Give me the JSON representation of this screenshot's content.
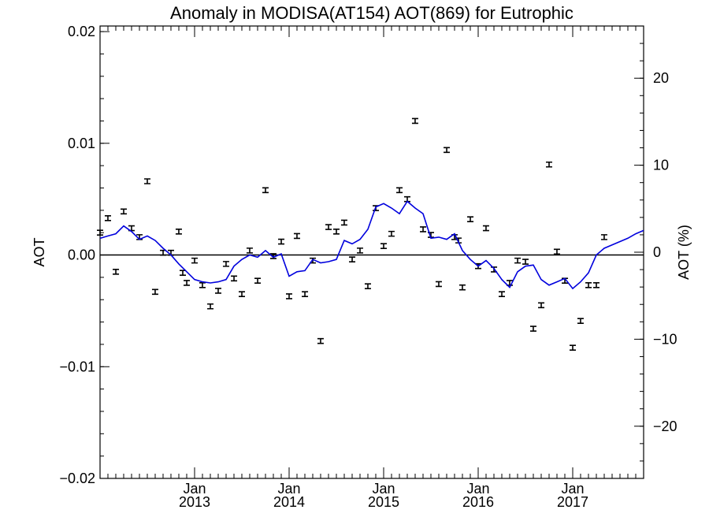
{
  "chart_data": {
    "type": "scatter",
    "title": "Anomaly in MODISA(AT154) AOT(869) for Eutrophic",
    "ylabel": "AOT",
    "ylabel_right": "AOT (%)",
    "ylim": [
      -0.02,
      0.0205
    ],
    "ylim_right": [
      -26,
      26
    ],
    "xlim": [
      2012.0,
      2017.75
    ],
    "y_ticks": [
      {
        "value": -0.02,
        "label": "−0.02"
      },
      {
        "value": -0.01,
        "label": "−0.01"
      },
      {
        "value": 0.0,
        "label": "0.00"
      },
      {
        "value": 0.01,
        "label": "0.01"
      },
      {
        "value": 0.02,
        "label": "0.02"
      }
    ],
    "y_ticks_right": [
      {
        "value": -20,
        "label": "−20"
      },
      {
        "value": -10,
        "label": "−10"
      },
      {
        "value": 0,
        "label": "0"
      },
      {
        "value": 10,
        "label": "10"
      },
      {
        "value": 20,
        "label": "20"
      }
    ],
    "x_ticks": [
      {
        "value": 2013.0,
        "month": "Jan",
        "year": "2013"
      },
      {
        "value": 2014.0,
        "month": "Jan",
        "year": "2014"
      },
      {
        "value": 2015.0,
        "month": "Jan",
        "year": "2015"
      },
      {
        "value": 2016.0,
        "month": "Jan",
        "year": "2016"
      },
      {
        "value": 2017.0,
        "month": "Jan",
        "year": "2017"
      }
    ],
    "points": [
      {
        "x": 2012.0,
        "y": 0.002
      },
      {
        "x": 2012.083,
        "y": 0.0033
      },
      {
        "x": 2012.167,
        "y": -0.0015
      },
      {
        "x": 2012.25,
        "y": 0.0039
      },
      {
        "x": 2012.333,
        "y": 0.0024
      },
      {
        "x": 2012.417,
        "y": 0.0016
      },
      {
        "x": 2012.5,
        "y": 0.0066
      },
      {
        "x": 2012.583,
        "y": -0.0033
      },
      {
        "x": 2012.667,
        "y": 0.0002
      },
      {
        "x": 2012.75,
        "y": 0.0002
      },
      {
        "x": 2012.833,
        "y": 0.0021
      },
      {
        "x": 2012.875,
        "y": -0.0016
      },
      {
        "x": 2012.917,
        "y": -0.0025
      },
      {
        "x": 2013.0,
        "y": -0.0005
      },
      {
        "x": 2013.083,
        "y": -0.0027
      },
      {
        "x": 2013.167,
        "y": -0.0046
      },
      {
        "x": 2013.25,
        "y": -0.0032
      },
      {
        "x": 2013.333,
        "y": -0.0008
      },
      {
        "x": 2013.417,
        "y": -0.0021
      },
      {
        "x": 2013.5,
        "y": -0.0035
      },
      {
        "x": 2013.583,
        "y": 0.0004
      },
      {
        "x": 2013.667,
        "y": -0.0023
      },
      {
        "x": 2013.75,
        "y": 0.0058
      },
      {
        "x": 2013.833,
        "y": -0.0001
      },
      {
        "x": 2013.917,
        "y": 0.0012
      },
      {
        "x": 2014.0,
        "y": -0.0037
      },
      {
        "x": 2014.083,
        "y": 0.0017
      },
      {
        "x": 2014.167,
        "y": -0.0035
      },
      {
        "x": 2014.25,
        "y": -0.0005
      },
      {
        "x": 2014.333,
        "y": -0.0077
      },
      {
        "x": 2014.417,
        "y": 0.0025
      },
      {
        "x": 2014.5,
        "y": 0.0021
      },
      {
        "x": 2014.583,
        "y": 0.0029
      },
      {
        "x": 2014.667,
        "y": -0.0004
      },
      {
        "x": 2014.75,
        "y": 0.0004
      },
      {
        "x": 2014.833,
        "y": -0.0028
      },
      {
        "x": 2014.917,
        "y": 0.0042
      },
      {
        "x": 2015.0,
        "y": 0.0008
      },
      {
        "x": 2015.083,
        "y": 0.0019
      },
      {
        "x": 2015.167,
        "y": 0.0058
      },
      {
        "x": 2015.25,
        "y": 0.005
      },
      {
        "x": 2015.333,
        "y": 0.012
      },
      {
        "x": 2015.417,
        "y": 0.0023
      },
      {
        "x": 2015.5,
        "y": 0.0018
      },
      {
        "x": 2015.583,
        "y": -0.0026
      },
      {
        "x": 2015.667,
        "y": 0.0094
      },
      {
        "x": 2015.75,
        "y": 0.0016
      },
      {
        "x": 2015.792,
        "y": 0.0013
      },
      {
        "x": 2015.833,
        "y": -0.0029
      },
      {
        "x": 2015.917,
        "y": 0.0032
      },
      {
        "x": 2016.0,
        "y": -0.001
      },
      {
        "x": 2016.083,
        "y": 0.0024
      },
      {
        "x": 2016.167,
        "y": -0.0013
      },
      {
        "x": 2016.25,
        "y": -0.0035
      },
      {
        "x": 2016.333,
        "y": -0.0025
      },
      {
        "x": 2016.417,
        "y": -0.0005
      },
      {
        "x": 2016.5,
        "y": -0.0006
      },
      {
        "x": 2016.583,
        "y": -0.0066
      },
      {
        "x": 2016.667,
        "y": -0.0045
      },
      {
        "x": 2016.75,
        "y": 0.0081
      },
      {
        "x": 2016.833,
        "y": 0.0003
      },
      {
        "x": 2016.917,
        "y": -0.0023
      },
      {
        "x": 2017.0,
        "y": -0.0083
      },
      {
        "x": 2017.083,
        "y": -0.0059
      },
      {
        "x": 2017.167,
        "y": -0.0027
      },
      {
        "x": 2017.25,
        "y": -0.0027
      },
      {
        "x": 2017.333,
        "y": 0.0016
      }
    ],
    "trend": {
      "x": [
        2012.0,
        2012.083,
        2012.167,
        2012.25,
        2012.333,
        2012.417,
        2012.5,
        2012.583,
        2012.667,
        2012.75,
        2012.833,
        2012.917,
        2013.0,
        2013.083,
        2013.167,
        2013.25,
        2013.333,
        2013.417,
        2013.5,
        2013.583,
        2013.667,
        2013.75,
        2013.833,
        2013.917,
        2014.0,
        2014.083,
        2014.167,
        2014.25,
        2014.333,
        2014.417,
        2014.5,
        2014.583,
        2014.667,
        2014.75,
        2014.833,
        2014.917,
        2015.0,
        2015.083,
        2015.167,
        2015.25,
        2015.333,
        2015.417,
        2015.5,
        2015.583,
        2015.667,
        2015.75,
        2015.833,
        2015.917,
        2016.0,
        2016.083,
        2016.167,
        2016.25,
        2016.333,
        2016.417,
        2016.5,
        2016.583,
        2016.667,
        2016.75,
        2016.833,
        2016.917,
        2017.0,
        2017.083,
        2017.167,
        2017.25,
        2017.333,
        2017.417,
        2017.5,
        2017.583,
        2017.667,
        2017.75
      ],
      "y": [
        0.0015,
        0.0017,
        0.0019,
        0.0026,
        0.0021,
        0.0014,
        0.0017,
        0.0013,
        0.0006,
        0.0,
        -0.0008,
        -0.0015,
        -0.0022,
        -0.0024,
        -0.0025,
        -0.0024,
        -0.0022,
        -0.001,
        -0.0004,
        0.0,
        -0.0002,
        0.0004,
        -0.0002,
        0.0001,
        -0.0019,
        -0.0015,
        -0.0014,
        -0.0004,
        -0.0007,
        -0.0006,
        -0.0004,
        0.0013,
        0.001,
        0.0014,
        0.0023,
        0.0043,
        0.0046,
        0.0042,
        0.0037,
        0.0048,
        0.0042,
        0.0037,
        0.0015,
        0.0016,
        0.0014,
        0.0019,
        0.0004,
        -0.0004,
        -0.001,
        -0.0005,
        -0.0012,
        -0.0022,
        -0.0029,
        -0.0015,
        -0.001,
        -0.0009,
        -0.0022,
        -0.0027,
        -0.0024,
        -0.0021,
        -0.003,
        -0.0024,
        -0.0016,
        0.0,
        0.0006,
        0.0009,
        0.0012,
        0.0015,
        0.0019,
        0.0022
      ]
    }
  }
}
